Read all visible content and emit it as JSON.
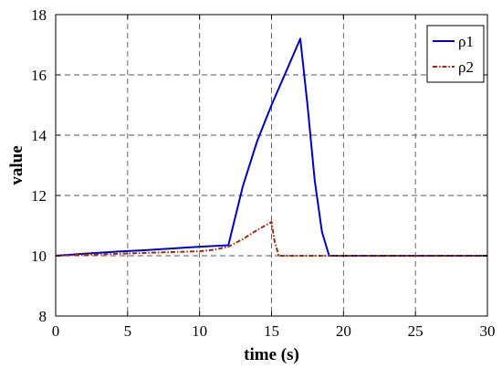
{
  "chart_data": {
    "type": "line",
    "xlabel": "time (s)",
    "ylabel": "value",
    "xlim": [
      0,
      30
    ],
    "ylim": [
      8,
      18
    ],
    "xticks": [
      0,
      5,
      10,
      15,
      20,
      25,
      30
    ],
    "yticks": [
      8,
      10,
      12,
      14,
      16,
      18
    ],
    "xtick_labels": [
      "0",
      "5",
      "10",
      "15",
      "20",
      "25",
      "30"
    ],
    "ytick_labels": [
      "8",
      "10",
      "12",
      "14",
      "16",
      "18"
    ],
    "grid": true,
    "legend_position": "top-right",
    "series": [
      {
        "name": "ρ1",
        "color": "#0000cc",
        "style": "solid",
        "x": [
          0,
          2,
          4,
          6,
          8,
          10,
          12,
          13,
          14,
          15,
          16,
          17,
          17.5,
          18,
          18.5,
          19,
          20,
          25,
          30
        ],
        "y": [
          10.0,
          10.07,
          10.13,
          10.18,
          10.24,
          10.3,
          10.35,
          12.3,
          13.8,
          15.0,
          16.1,
          17.2,
          15.0,
          12.5,
          10.8,
          10.0,
          10.0,
          10.0,
          10.0
        ]
      },
      {
        "name": "ρ2",
        "color": "#a52a00",
        "style": "dashdot",
        "x": [
          0,
          2,
          4,
          6,
          8,
          10,
          11,
          12,
          13,
          14,
          15,
          15.2,
          15.5,
          16,
          20,
          25,
          30
        ],
        "y": [
          10.0,
          10.03,
          10.06,
          10.09,
          10.12,
          10.15,
          10.2,
          10.3,
          10.55,
          10.85,
          11.12,
          10.5,
          10.0,
          10.0,
          10.0,
          10.0,
          10.0
        ]
      }
    ]
  }
}
